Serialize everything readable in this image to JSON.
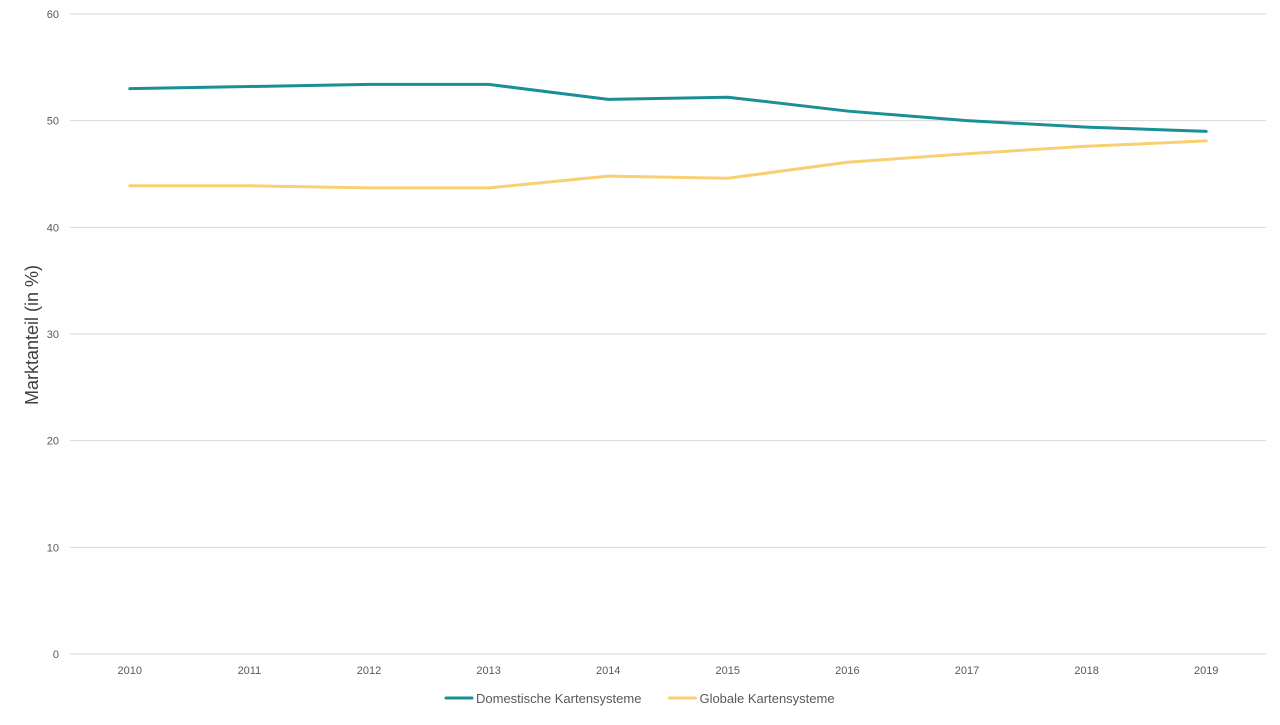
{
  "chart_data": {
    "type": "line",
    "title": "",
    "xlabel": "",
    "ylabel": "Marktanteil (in %)",
    "ylim": [
      0,
      60
    ],
    "yticks": [
      "0",
      "10",
      "20",
      "30",
      "40",
      "50",
      "60"
    ],
    "categories": [
      "2010",
      "2011",
      "2012",
      "2013",
      "2014",
      "2015",
      "2016",
      "2017",
      "2018",
      "2019"
    ],
    "series": [
      {
        "name": "Domestische Kartensysteme",
        "color": "#1a9096",
        "values": [
          53.0,
          53.2,
          53.4,
          53.4,
          52.0,
          52.2,
          50.9,
          50.0,
          49.4,
          49.0
        ]
      },
      {
        "name": "Globale Kartensysteme",
        "color": "#f8d073",
        "values": [
          43.9,
          43.9,
          43.7,
          43.7,
          44.8,
          44.6,
          46.1,
          46.9,
          47.6,
          48.1
        ]
      }
    ],
    "grid": true,
    "gridColor": "#d9d9d9",
    "legend": "bottom-center"
  }
}
